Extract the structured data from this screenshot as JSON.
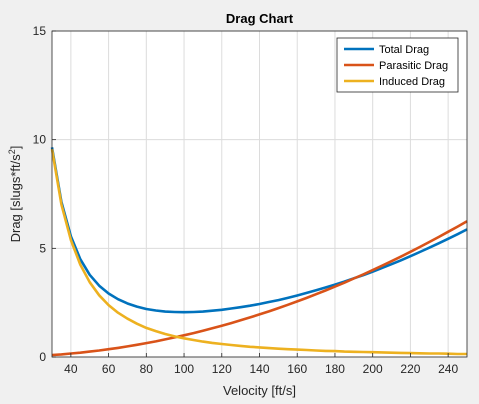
{
  "chart_data": {
    "type": "line",
    "title": "Drag Chart",
    "xlabel": "Velocity [ft/s]",
    "ylabel": "Drag [slugs*ft/s^2]",
    "xlim": [
      30,
      250
    ],
    "ylim": [
      0,
      15
    ],
    "xticks": [
      40,
      60,
      80,
      100,
      120,
      140,
      160,
      180,
      200,
      220,
      240
    ],
    "yticks": [
      0,
      5,
      10,
      15
    ],
    "grid": true,
    "legend": "top-right",
    "x": [
      30,
      35,
      40,
      45,
      50,
      55,
      60,
      65,
      70,
      75,
      80,
      85,
      90,
      95,
      100,
      105,
      110,
      115,
      120,
      125,
      130,
      135,
      140,
      145,
      150,
      155,
      160,
      165,
      170,
      175,
      180,
      185,
      190,
      195,
      200,
      205,
      210,
      215,
      220,
      225,
      230,
      235,
      240,
      245,
      250
    ],
    "series": [
      {
        "name": "Total Drag",
        "color": "#0072BD",
        "values": [
          9.65,
          7.14,
          5.55,
          4.5,
          3.78,
          3.28,
          2.92,
          2.66,
          2.46,
          2.32,
          2.21,
          2.14,
          2.09,
          2.07,
          2.06,
          2.07,
          2.09,
          2.13,
          2.17,
          2.23,
          2.29,
          2.36,
          2.44,
          2.53,
          2.62,
          2.72,
          2.83,
          2.95,
          3.07,
          3.2,
          3.33,
          3.47,
          3.62,
          3.77,
          3.93,
          4.1,
          4.27,
          4.45,
          4.64,
          4.83,
          5.03,
          5.23,
          5.44,
          5.65,
          5.87
        ]
      },
      {
        "name": "Parasitic Drag",
        "color": "#D95319",
        "values": [
          0.09,
          0.12,
          0.16,
          0.2,
          0.25,
          0.3,
          0.36,
          0.42,
          0.49,
          0.56,
          0.64,
          0.72,
          0.81,
          0.9,
          1.0,
          1.1,
          1.21,
          1.32,
          1.44,
          1.56,
          1.69,
          1.82,
          1.96,
          2.1,
          2.25,
          2.4,
          2.56,
          2.72,
          2.89,
          3.06,
          3.24,
          3.42,
          3.61,
          3.8,
          4.0,
          4.2,
          4.41,
          4.62,
          4.84,
          5.06,
          5.29,
          5.52,
          5.76,
          6.0,
          6.25
        ]
      },
      {
        "name": "Induced Drag",
        "color": "#EDB120",
        "values": [
          9.56,
          7.02,
          5.38,
          4.25,
          3.44,
          2.84,
          2.39,
          2.04,
          1.76,
          1.53,
          1.34,
          1.19,
          1.06,
          0.95,
          0.86,
          0.78,
          0.71,
          0.65,
          0.6,
          0.55,
          0.51,
          0.47,
          0.44,
          0.41,
          0.38,
          0.36,
          0.34,
          0.32,
          0.3,
          0.28,
          0.27,
          0.25,
          0.24,
          0.23,
          0.22,
          0.21,
          0.2,
          0.19,
          0.18,
          0.17,
          0.16,
          0.16,
          0.15,
          0.14,
          0.14
        ]
      }
    ]
  }
}
